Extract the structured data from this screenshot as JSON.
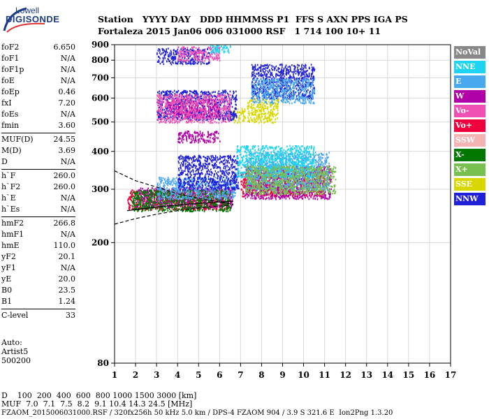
{
  "logo": {
    "line1": "Lowell",
    "line2": "DIGISONDE"
  },
  "header": {
    "row1": "Station   YYYY DAY   DDD HHMMSS P1  FFS S AXN PPS IGA PS",
    "row2": "Fortaleza 2015 Jan06 006 031000 RSF   1 714 100 10+ 11"
  },
  "params": [
    {
      "group": [
        {
          "name": "foF2",
          "value": "6.650"
        },
        {
          "name": "foF1",
          "value": "N/A"
        },
        {
          "name": "foF1p",
          "value": "N/A"
        },
        {
          "name": "foE",
          "value": "N/A"
        },
        {
          "name": "foEp",
          "value": "0.46"
        },
        {
          "name": "fxI",
          "value": "7.20"
        },
        {
          "name": "foEs",
          "value": "N/A"
        },
        {
          "name": "fmin",
          "value": "3.60"
        }
      ]
    },
    {
      "group": [
        {
          "name": "MUF(D)",
          "value": "24.55"
        },
        {
          "name": "M(D)",
          "value": "3.69"
        },
        {
          "name": "D",
          "value": "N/A"
        }
      ]
    },
    {
      "group": [
        {
          "name": "h`F",
          "value": "260.0"
        },
        {
          "name": "h`F2",
          "value": "260.0"
        },
        {
          "name": "h`E",
          "value": "N/A"
        },
        {
          "name": "h`Es",
          "value": "N/A"
        }
      ]
    },
    {
      "group": [
        {
          "name": "hmF2",
          "value": "266.8"
        },
        {
          "name": "hmF1",
          "value": "N/A"
        },
        {
          "name": "hmE",
          "value": "110.0"
        },
        {
          "name": "yF2",
          "value": "20.1"
        },
        {
          "name": "yF1",
          "value": "N/A"
        },
        {
          "name": "yE",
          "value": "20.0"
        },
        {
          "name": "B0",
          "value": "23.5"
        },
        {
          "name": "B1",
          "value": "1.24"
        }
      ]
    },
    {
      "group": [
        {
          "name": "C-level",
          "value": "33"
        }
      ]
    }
  ],
  "auto": {
    "line1": "Auto:",
    "line2": "Artist5",
    "line3": "500200"
  },
  "legend": [
    {
      "label": "NoVal",
      "bg": "#888888",
      "fg": "#ffffff"
    },
    {
      "label": "NNE",
      "bg": "#1ed4f0",
      "fg": "#ffffff"
    },
    {
      "label": "E",
      "bg": "#4aa8ee",
      "fg": "#ffffff"
    },
    {
      "label": "W",
      "bg": "#b000a8",
      "fg": "#ffffff"
    },
    {
      "label": "Vo-",
      "bg": "#f050b4",
      "fg": "#ffffff"
    },
    {
      "label": "Vo+",
      "bg": "#f0003c",
      "fg": "#ffffff"
    },
    {
      "label": "SSW",
      "bg": "#f4b4b4",
      "fg": "#ffffff"
    },
    {
      "label": "X-",
      "bg": "#007800",
      "fg": "#ffffff"
    },
    {
      "label": "X+",
      "bg": "#78c050",
      "fg": "#ffffff"
    },
    {
      "label": "SSE",
      "bg": "#d8d800",
      "fg": "#ffffff"
    },
    {
      "label": "NNW",
      "bg": "#2020d8",
      "fg": "#ffffff"
    }
  ],
  "footer": {
    "d_row": "D    100  200  400  600  800 1000 1500 3000 [km]",
    "muf_row": "MUF  7.0  7.1  7.5  8.2  9.1 10.4 14.3 24.5 [MHz]",
    "file_row": "FZAOM_2015006031000.RSF / 320fx256h 50 kHz 5.0 km / DPS-4 FZAOM 904 / 3.9 S 321.6 E  Ion2Png 1.3.20"
  },
  "chart_data": {
    "type": "scatter",
    "title": "",
    "xlabel": "",
    "ylabel": "",
    "xlim": [
      1,
      17
    ],
    "ylim": [
      80,
      900
    ],
    "y_scale": "log",
    "x_ticks": [
      "1",
      "2",
      "3",
      "4",
      "5",
      "6",
      "7",
      "8",
      "9",
      "10",
      "11",
      "12",
      "13",
      "14",
      "15",
      "16",
      "17"
    ],
    "y_ticks": [
      "80",
      "200",
      "300",
      "400",
      "500",
      "600",
      "700",
      "800",
      "900"
    ],
    "y_tick_values": [
      80,
      200,
      300,
      400,
      500,
      600,
      700,
      800,
      900
    ],
    "grid": true,
    "legend_position": "right",
    "profile": {
      "name": "electron density profile",
      "x": [
        1.0,
        2.0,
        3.0,
        4.0,
        5.0,
        6.0,
        6.65
      ],
      "y": [
        345,
        320,
        305,
        290,
        280,
        272,
        268
      ]
    },
    "profile_lower": {
      "x": [
        1.0,
        2.0,
        3.0,
        4.0,
        5.0,
        6.0,
        6.65
      ],
      "y": [
        230,
        240,
        248,
        255,
        260,
        264,
        266.8
      ]
    },
    "echo_clusters": [
      {
        "series": "Vo+",
        "x_range": [
          1.6,
          6.6
        ],
        "y_range": [
          258,
          300
        ]
      },
      {
        "series": "W",
        "x_range": [
          2.0,
          6.6
        ],
        "y_range": [
          262,
          305
        ]
      },
      {
        "series": "X-",
        "x_range": [
          1.8,
          6.5
        ],
        "y_range": [
          255,
          300
        ]
      },
      {
        "series": "E",
        "x_range": [
          3.0,
          6.8
        ],
        "y_range": [
          280,
          330
        ]
      },
      {
        "series": "NNW",
        "x_range": [
          4.0,
          6.9
        ],
        "y_range": [
          300,
          390
        ]
      },
      {
        "series": "Vo+",
        "x_range": [
          7.0,
          11.0
        ],
        "y_range": [
          285,
          345
        ]
      },
      {
        "series": "W",
        "x_range": [
          7.2,
          11.3
        ],
        "y_range": [
          280,
          360
        ]
      },
      {
        "series": "E",
        "x_range": [
          7.3,
          11.2
        ],
        "y_range": [
          300,
          400
        ]
      },
      {
        "series": "NNE",
        "x_range": [
          6.8,
          10.5
        ],
        "y_range": [
          330,
          420
        ]
      },
      {
        "series": "X+",
        "x_range": [
          7.2,
          11.5
        ],
        "y_range": [
          290,
          360
        ]
      },
      {
        "series": "SSE",
        "x_range": [
          7.3,
          8.8
        ],
        "y_range": [
          500,
          600
        ]
      },
      {
        "series": "SSE",
        "x_range": [
          6.6,
          7.2
        ],
        "y_range": [
          500,
          560
        ]
      },
      {
        "series": "NNW",
        "x_range": [
          3.0,
          6.8
        ],
        "y_range": [
          510,
          640
        ]
      },
      {
        "series": "W",
        "x_range": [
          3.5,
          6.0
        ],
        "y_range": [
          520,
          600
        ]
      },
      {
        "series": "Vo-",
        "x_range": [
          3.0,
          6.5
        ],
        "y_range": [
          500,
          620
        ]
      },
      {
        "series": "NNW",
        "x_range": [
          7.5,
          10.5
        ],
        "y_range": [
          600,
          780
        ]
      },
      {
        "series": "E",
        "x_range": [
          7.5,
          10.5
        ],
        "y_range": [
          580,
          700
        ]
      },
      {
        "series": "W",
        "x_range": [
          4.0,
          6.0
        ],
        "y_range": [
          430,
          470
        ]
      },
      {
        "series": "NNW",
        "x_range": [
          3.0,
          5.5
        ],
        "y_range": [
          780,
          880
        ]
      },
      {
        "series": "Vo-",
        "x_range": [
          4.0,
          6.0
        ],
        "y_range": [
          800,
          890
        ]
      },
      {
        "series": "NNE",
        "x_range": [
          5.5,
          6.5
        ],
        "y_range": [
          850,
          900
        ]
      }
    ]
  }
}
